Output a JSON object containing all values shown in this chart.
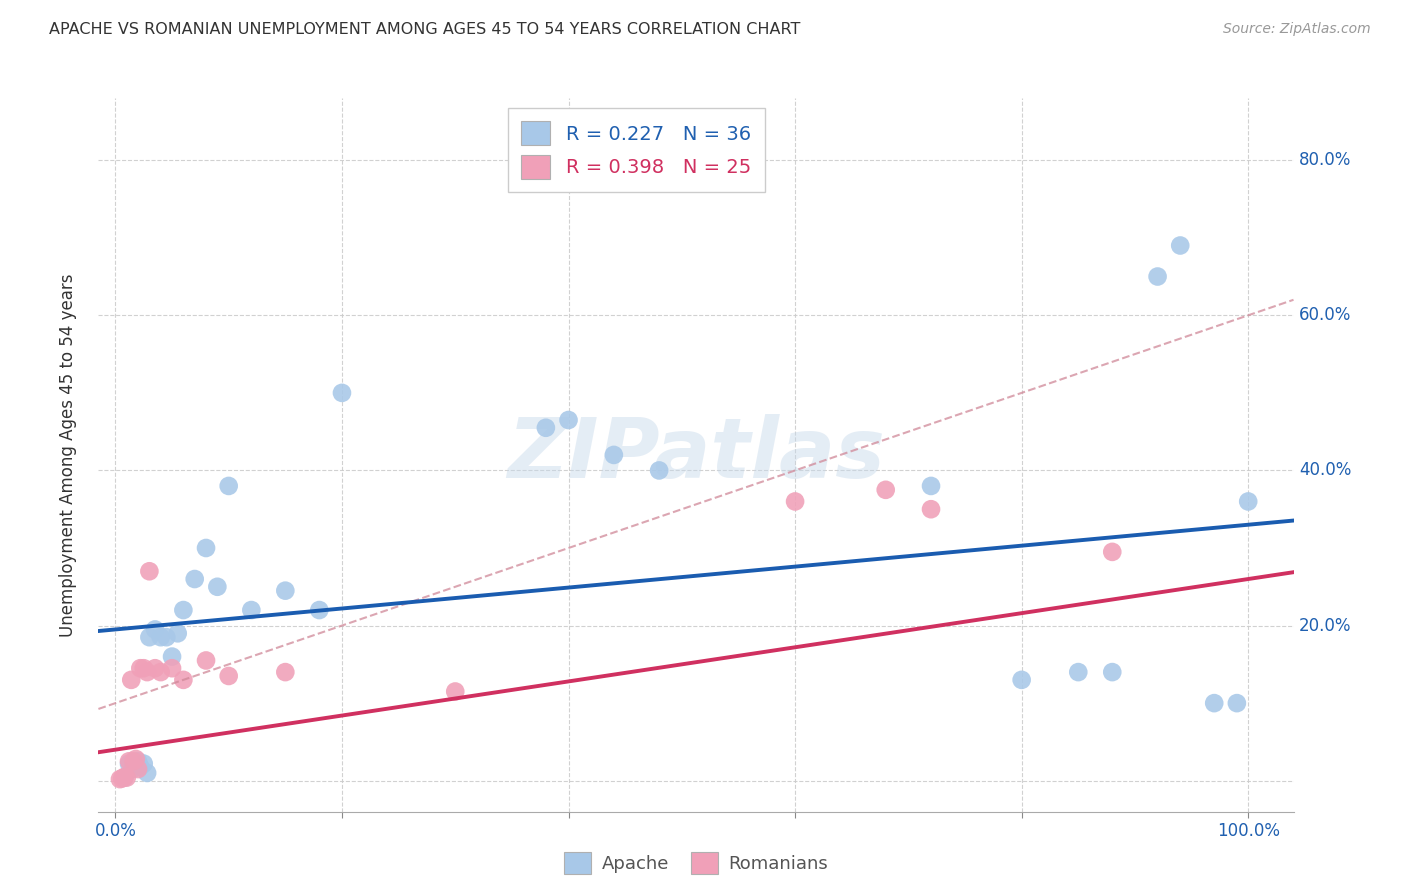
{
  "title": "APACHE VS ROMANIAN UNEMPLOYMENT AMONG AGES 45 TO 54 YEARS CORRELATION CHART",
  "source": "Source: ZipAtlas.com",
  "ylabel": "Unemployment Among Ages 45 to 54 years",
  "watermark": "ZIPatlas",
  "legend1_label": "Apache",
  "legend2_label": "Romanians",
  "r1": 0.227,
  "n1": 36,
  "r2": 0.398,
  "n2": 25,
  "apache_color": "#a8c8e8",
  "romanian_color": "#f0a0b8",
  "apache_line_color": "#1a5cb0",
  "romanian_line_color": "#d03060",
  "dashed_line_color": "#d08898",
  "xlim": [
    -0.015,
    1.04
  ],
  "ylim": [
    -0.04,
    0.88
  ],
  "xticks": [
    0.0,
    0.2,
    0.4,
    0.6,
    0.8,
    1.0
  ],
  "yticks": [
    0.0,
    0.2,
    0.4,
    0.6,
    0.8
  ],
  "xticklabels": [
    "0.0%",
    "",
    "",
    "",
    "",
    "100.0%"
  ],
  "yticklabels": [
    "",
    "20.0%",
    "40.0%",
    "60.0%",
    "80.0%"
  ],
  "apache_x": [
    0.008,
    0.012,
    0.015,
    0.018,
    0.02,
    0.022,
    0.025,
    0.028,
    0.03,
    0.035,
    0.04,
    0.045,
    0.05,
    0.055,
    0.06,
    0.07,
    0.08,
    0.09,
    0.1,
    0.12,
    0.15,
    0.18,
    0.2,
    0.38,
    0.4,
    0.44,
    0.48,
    0.72,
    0.8,
    0.85,
    0.88,
    0.92,
    0.94,
    0.97,
    0.99,
    1.0
  ],
  "apache_y": [
    0.004,
    0.022,
    0.015,
    0.02,
    0.025,
    0.018,
    0.022,
    0.01,
    0.185,
    0.195,
    0.185,
    0.185,
    0.16,
    0.19,
    0.22,
    0.26,
    0.3,
    0.25,
    0.38,
    0.22,
    0.245,
    0.22,
    0.5,
    0.455,
    0.465,
    0.42,
    0.4,
    0.38,
    0.13,
    0.14,
    0.14,
    0.65,
    0.69,
    0.1,
    0.1,
    0.36
  ],
  "romanian_x": [
    0.004,
    0.006,
    0.008,
    0.01,
    0.012,
    0.014,
    0.016,
    0.018,
    0.02,
    0.022,
    0.025,
    0.028,
    0.03,
    0.035,
    0.04,
    0.05,
    0.06,
    0.08,
    0.1,
    0.15,
    0.3,
    0.6,
    0.68,
    0.72,
    0.88
  ],
  "romanian_y": [
    0.002,
    0.003,
    0.005,
    0.004,
    0.025,
    0.13,
    0.025,
    0.028,
    0.015,
    0.145,
    0.145,
    0.14,
    0.27,
    0.145,
    0.14,
    0.145,
    0.13,
    0.155,
    0.135,
    0.14,
    0.115,
    0.36,
    0.375,
    0.35,
    0.295
  ]
}
